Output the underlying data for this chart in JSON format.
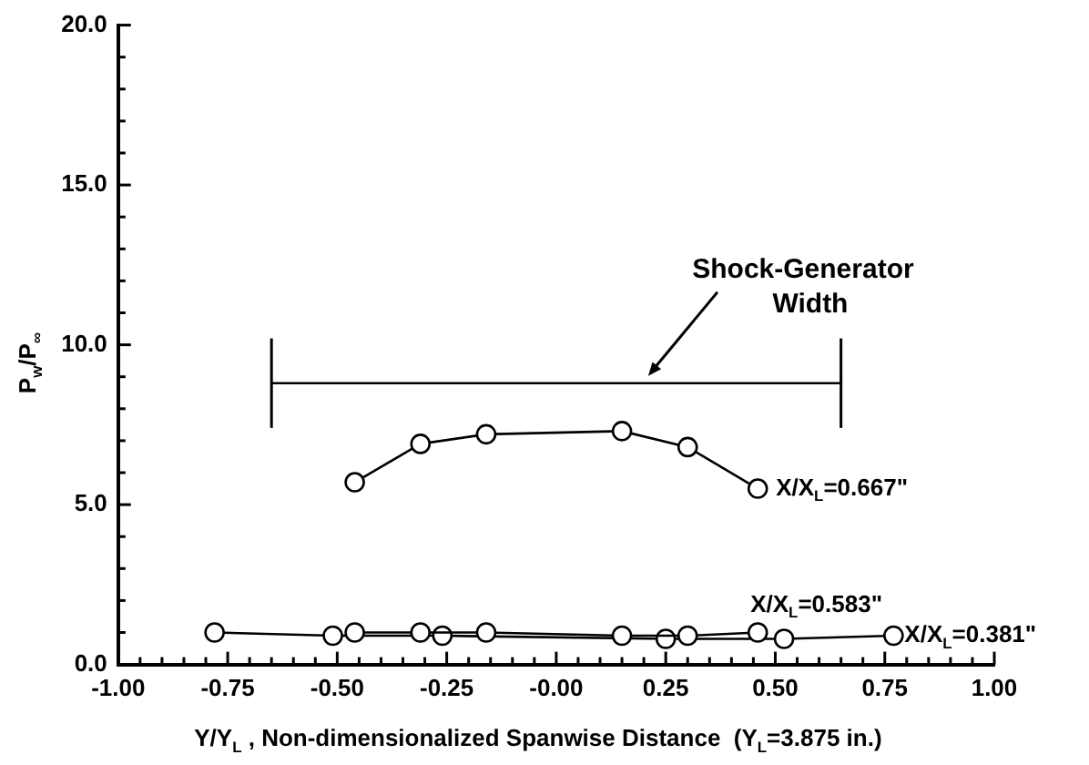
{
  "chart_data": {
    "type": "line",
    "xlabel": "Y/Y$_{L}$ , Non-dimensionalized Spanwise Distance  (Y$_{L}$=3.875 in.)",
    "ylabel": "P$_{w}$/P$_{∞}$",
    "series": [
      {
        "name": "X/X$_{L}$=0.667\"",
        "color": "#000000",
        "x": [
          -0.46,
          -0.31,
          -0.16,
          0.15,
          0.3,
          0.46
        ],
        "values": [
          5.7,
          6.9,
          7.2,
          7.3,
          6.8,
          5.5
        ]
      },
      {
        "name": "X/X$_{L}$=0.583\"",
        "color": "#000000",
        "x": [
          -0.46,
          -0.31,
          -0.16,
          0.15,
          0.3,
          0.46
        ],
        "values": [
          1.0,
          1.0,
          1.0,
          0.9,
          0.9,
          1.0
        ]
      },
      {
        "name": "X/X$_{L}$=0.381\"",
        "color": "#000000",
        "x": [
          -0.78,
          -0.51,
          -0.26,
          0.25,
          0.52,
          0.77
        ],
        "values": [
          1.0,
          0.9,
          0.9,
          0.8,
          0.8,
          0.9
        ]
      },
      {
        "marker": "none",
        "color": "#000000",
        "x": [
          -0.65,
          0.65
        ],
        "values": [
          8.8,
          8.8
        ],
        "errors": [
          1.4,
          1.4
        ]
      }
    ],
    "annotations": [
      {
        "text": "Shock-Generator Width",
        "x": 0.21,
        "y": 8.8
      }
    ],
    "xlim": [
      -1,
      1
    ],
    "ylim": [
      0,
      20
    ],
    "xticks": [
      {
        "value": -1,
        "label": "-1.00"
      },
      {
        "value": -0.95,
        "label": null
      },
      {
        "value": -0.9,
        "label": null
      },
      {
        "value": -0.85,
        "label": null
      },
      {
        "value": -0.8,
        "label": null
      },
      {
        "value": -0.75,
        "label": "-0.75"
      },
      {
        "value": -0.7,
        "label": null
      },
      {
        "value": -0.65,
        "label": null
      },
      {
        "value": -0.6,
        "label": null
      },
      {
        "value": -0.55,
        "label": null
      },
      {
        "value": -0.5,
        "label": "-0.50"
      },
      {
        "value": -0.45,
        "label": null
      },
      {
        "value": -0.4,
        "label": null
      },
      {
        "value": -0.35,
        "label": null
      },
      {
        "value": -0.3,
        "label": null
      },
      {
        "value": -0.25,
        "label": "-0.25"
      },
      {
        "value": -0.2,
        "label": null
      },
      {
        "value": -0.15,
        "label": null
      },
      {
        "value": -0.1,
        "label": null
      },
      {
        "value": -0.05,
        "label": null
      },
      {
        "value": 0,
        "label": "-0.00"
      },
      {
        "value": 0.05,
        "label": null
      },
      {
        "value": 0.1,
        "label": null
      },
      {
        "value": 0.15,
        "label": null
      },
      {
        "value": 0.2,
        "label": null
      },
      {
        "value": 0.25,
        "label": "0.25"
      },
      {
        "value": 0.3,
        "label": null
      },
      {
        "value": 0.35,
        "label": null
      },
      {
        "value": 0.4,
        "label": null
      },
      {
        "value": 0.45,
        "label": null
      },
      {
        "value": 0.5,
        "label": "0.50"
      },
      {
        "value": 0.55,
        "label": null
      },
      {
        "value": 0.6,
        "label": null
      },
      {
        "value": 0.65,
        "label": null
      },
      {
        "value": 0.7,
        "label": null
      },
      {
        "value": 0.75,
        "label": "0.75"
      },
      {
        "value": 0.8,
        "label": null
      },
      {
        "value": 0.85,
        "label": null
      },
      {
        "value": 0.9,
        "label": null
      },
      {
        "value": 0.95,
        "label": null
      },
      {
        "value": 1,
        "label": "1.00"
      }
    ],
    "yticks": [
      {
        "value": 0,
        "label": "0.0"
      },
      {
        "value": 1,
        "label": null
      },
      {
        "value": 2,
        "label": null
      },
      {
        "value": 3,
        "label": null
      },
      {
        "value": 4,
        "label": null
      },
      {
        "value": 5,
        "label": "5.0"
      },
      {
        "value": 6,
        "label": null
      },
      {
        "value": 7,
        "label": null
      },
      {
        "value": 8,
        "label": null
      },
      {
        "value": 9,
        "label": null
      },
      {
        "value": 10,
        "label": "10.0"
      },
      {
        "value": 11,
        "label": null
      },
      {
        "value": 12,
        "label": null
      },
      {
        "value": 13,
        "label": null
      },
      {
        "value": 14,
        "label": null
      },
      {
        "value": 15,
        "label": "15.0"
      },
      {
        "value": 16,
        "label": null
      },
      {
        "value": 17,
        "label": null
      },
      {
        "value": 18,
        "label": null
      },
      {
        "value": 19,
        "label": null
      },
      {
        "value": 20,
        "label": "20.0"
      }
    ],
    "grid": false,
    "legend": false,
    "marker": "circle",
    "line_style": "solid"
  }
}
